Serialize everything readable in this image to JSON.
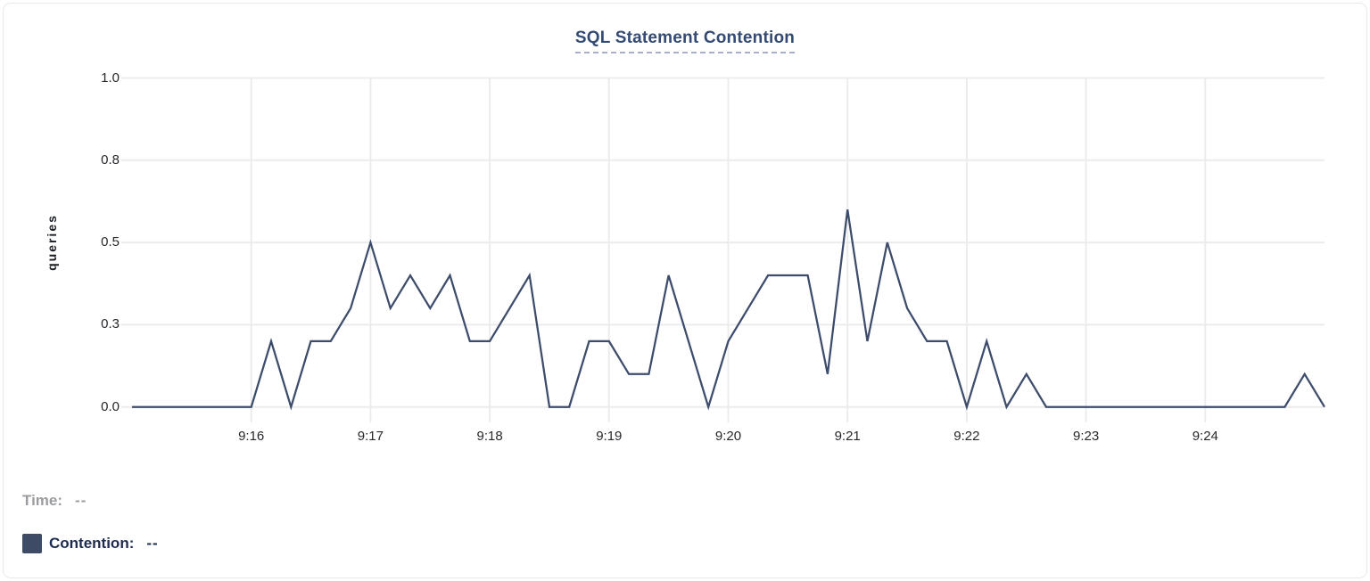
{
  "chart": {
    "title": "SQL Statement Contention",
    "ylabel": "queries"
  },
  "legend": {
    "time_label": "Time:",
    "time_value": "--",
    "series_label": "Contention:",
    "series_value": "--",
    "swatch_color": "#3e4b66"
  },
  "colors": {
    "line": "#3d4c6b",
    "grid": "#ececec",
    "title": "#344a72",
    "title_underline": "#a9b0cb",
    "tick_text": "#26282c",
    "legend_muted": "#9b9ca0",
    "legend_strong": "#1d2c4e"
  },
  "chart_data": {
    "type": "line",
    "title": "SQL Statement Contention",
    "xlabel": "",
    "ylabel": "queries",
    "grid": true,
    "legend_position": "bottom-left",
    "x_start": "9:15:00",
    "x_end": "9:25:00",
    "sample_interval_seconds": 10,
    "xlim_seconds": [
      0,
      600
    ],
    "ylim": [
      0,
      1.0
    ],
    "y_ticks": [
      {
        "label": "0.0",
        "value": 0
      },
      {
        "label": "0.3",
        "value": 0.25
      },
      {
        "label": "0.5",
        "value": 0.5
      },
      {
        "label": "0.8",
        "value": 0.75
      },
      {
        "label": "1.0",
        "value": 1.0
      }
    ],
    "x_ticks": [
      {
        "label": "9:16",
        "seconds": 60
      },
      {
        "label": "9:17",
        "seconds": 120
      },
      {
        "label": "9:18",
        "seconds": 180
      },
      {
        "label": "9:19",
        "seconds": 240
      },
      {
        "label": "9:20",
        "seconds": 300
      },
      {
        "label": "9:21",
        "seconds": 360
      },
      {
        "label": "9:22",
        "seconds": 420
      },
      {
        "label": "9:23",
        "seconds": 480
      },
      {
        "label": "9:24",
        "seconds": 540
      }
    ],
    "series": [
      {
        "name": "Contention",
        "unit": "queries",
        "color": "#3d4c6b",
        "values": [
          0,
          0,
          0,
          0,
          0,
          0,
          0,
          0.2,
          0,
          0.2,
          0.2,
          0.3,
          0.5,
          0.3,
          0.4,
          0.3,
          0.4,
          0.2,
          0.2,
          0.3,
          0.4,
          0,
          0,
          0.2,
          0.2,
          0.1,
          0.1,
          0.4,
          0.2,
          0,
          0.2,
          0.3,
          0.4,
          0.4,
          0.4,
          0.1,
          0.6,
          0.2,
          0.5,
          0.3,
          0.2,
          0.2,
          0,
          0.2,
          0,
          0.1,
          0,
          0,
          0,
          0,
          0,
          0,
          0,
          0,
          0,
          0,
          0,
          0,
          0,
          0.1,
          0
        ]
      }
    ]
  }
}
